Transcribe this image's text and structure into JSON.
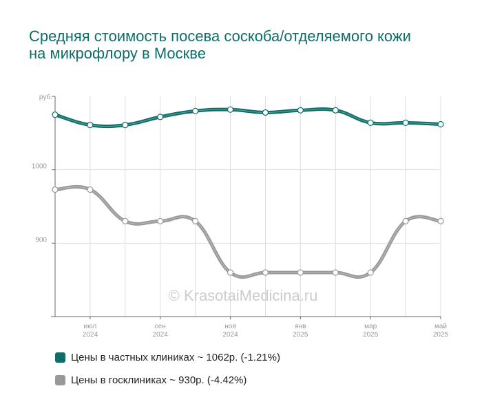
{
  "colors": {
    "private": "#0e6e68",
    "public": "#999999",
    "title": "#0e6e68",
    "grid": "#dddddd",
    "tick": "#999999"
  },
  "title": "Средняя стоимость посева соскоба/отделяемого кожи на микрофлору в Москве",
  "watermark": "© KrasotaiMedicina.ru",
  "chart_data": {
    "type": "line",
    "ylabel": "руб.",
    "ylim": [
      800,
      1100
    ],
    "yticks": [
      900,
      1000
    ],
    "grid": true,
    "x": [
      "2024-06",
      "2024-07",
      "2024-08",
      "2024-09",
      "2024-10",
      "2024-11",
      "2024-12",
      "2025-01",
      "2025-02",
      "2025-03",
      "2025-04",
      "2025-05"
    ],
    "xtick_labels": [
      {
        "month": "июл",
        "year": "2024",
        "index": 1
      },
      {
        "month": "сен",
        "year": "2024",
        "index": 3
      },
      {
        "month": "ноя",
        "year": "2024",
        "index": 5
      },
      {
        "month": "янв",
        "year": "2025",
        "index": 7
      },
      {
        "month": "мар",
        "year": "2025",
        "index": 9
      },
      {
        "month": "май",
        "year": "2025",
        "index": 11
      }
    ],
    "series": [
      {
        "name": "Цены в частных клиниках ~ 1062р. (-1.21%)",
        "values": [
          1075,
          1061,
          1061,
          1072,
          1080,
          1082,
          1078,
          1081,
          1081,
          1064,
          1064,
          1062
        ]
      },
      {
        "name": "Цены в госклиниках ~ 930р. (-4.42%)",
        "values": [
          973,
          973,
          930,
          930,
          930,
          860,
          860,
          860,
          860,
          860,
          930,
          930
        ]
      }
    ]
  }
}
